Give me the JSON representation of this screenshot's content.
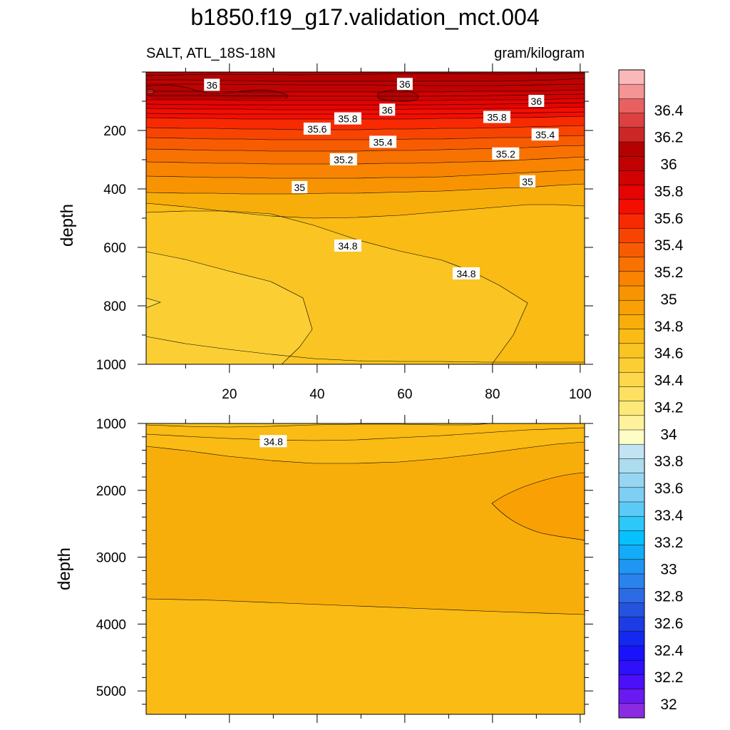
{
  "figure": {
    "title": "b1850.f19_g17.validation_mct.004",
    "left_subtitle": "SALT, ATL_18S-18N",
    "right_subtitle": "gram/kilogram"
  },
  "chart_data": [
    {
      "type": "contour",
      "name": "upper-panel",
      "xlabel": "",
      "ylabel": "depth",
      "xlim": [
        1,
        101
      ],
      "ylim": [
        1000,
        0
      ],
      "x_ticks": [
        20,
        40,
        60,
        80,
        100
      ],
      "y_ticks": [
        200,
        400,
        600,
        800,
        1000
      ],
      "contour_interval": 0.1,
      "contour_labels": [
        {
          "text": "36",
          "x": 16,
          "depth": 45
        },
        {
          "text": "36",
          "x": 60,
          "depth": 42
        },
        {
          "text": "36",
          "x": 56,
          "depth": 130
        },
        {
          "text": "36",
          "x": 90,
          "depth": 100
        },
        {
          "text": "35.8",
          "x": 47,
          "depth": 160
        },
        {
          "text": "35.8",
          "x": 81,
          "depth": 155
        },
        {
          "text": "35.6",
          "x": 40,
          "depth": 195
        },
        {
          "text": "35.4",
          "x": 55,
          "depth": 240
        },
        {
          "text": "35.4",
          "x": 92,
          "depth": 215
        },
        {
          "text": "35.2",
          "x": 46,
          "depth": 300
        },
        {
          "text": "35.2",
          "x": 83,
          "depth": 280
        },
        {
          "text": "35",
          "x": 36,
          "depth": 395
        },
        {
          "text": "35",
          "x": 88,
          "depth": 375
        },
        {
          "text": "34.8",
          "x": 47,
          "depth": 595
        },
        {
          "text": "34.8",
          "x": 74,
          "depth": 690
        }
      ]
    },
    {
      "type": "contour",
      "name": "lower-panel",
      "xlabel": "",
      "ylabel": "depth",
      "xlim": [
        1,
        101
      ],
      "ylim": [
        5350,
        1000
      ],
      "x_ticks": [],
      "y_ticks": [
        1000,
        2000,
        3000,
        4000,
        5000
      ],
      "contour_interval": 0.1,
      "contour_labels": [
        {
          "text": "34.8",
          "x": 30,
          "depth": 1270
        }
      ]
    }
  ],
  "colorbar": {
    "min": 31.9,
    "max": 36.7,
    "step": 0.1,
    "labels": [
      "36.4",
      "36.2",
      "36",
      "35.8",
      "35.6",
      "35.4",
      "35.2",
      "35",
      "34.8",
      "34.6",
      "34.4",
      "34.2",
      "34",
      "33.8",
      "33.6",
      "33.4",
      "33.2",
      "33",
      "32.8",
      "32.6",
      "32.4",
      "32.2",
      "32"
    ],
    "colors": [
      "#8a2be2",
      "#6a1af0",
      "#4b0ffa",
      "#2f10fa",
      "#1a12fa",
      "#1428f0",
      "#1c3ce6",
      "#2453e0",
      "#2d6be6",
      "#2a82ec",
      "#1f96f2",
      "#14abf8",
      "#08c0fc",
      "#2cc8fa",
      "#5ccaf6",
      "#7ecff4",
      "#96d6f2",
      "#acdcf0",
      "#c2e3f2",
      "#fdfdc8",
      "#fef29c",
      "#fde978",
      "#fde062",
      "#fcd84a",
      "#fbcf34",
      "#fac522",
      "#f9bb14",
      "#f8ae0a",
      "#f8a004",
      "#f89402",
      "#f88402",
      "#f87202",
      "#f85c02",
      "#f84402",
      "#f82a02",
      "#f40e02",
      "#e40402",
      "#d20202",
      "#c00202",
      "#b40202",
      "#cc2626",
      "#dc4040",
      "#e86060",
      "#f49494",
      "#fbb8b8"
    ]
  }
}
